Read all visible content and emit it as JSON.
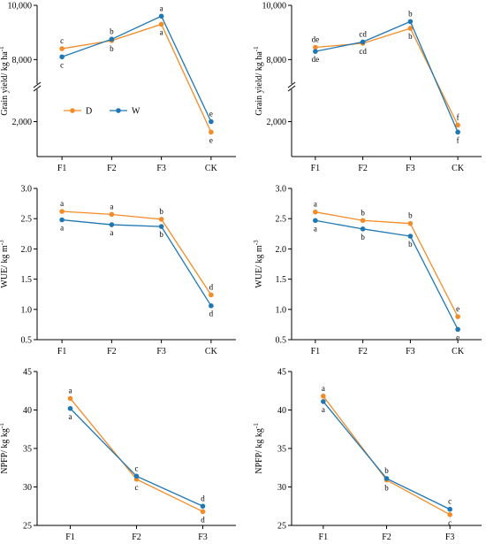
{
  "colors": {
    "D": "#F28C28",
    "W": "#1F77B4",
    "axis": "#000000"
  },
  "chart_data": [
    {
      "type": "line",
      "categories": [
        "F1",
        "F2",
        "F3",
        "CK"
      ],
      "ylabel": "Grain yield/ kg ha",
      "ylabel_sup": "-1",
      "broken_axis": true,
      "upper_ylim": [
        7000,
        10000
      ],
      "upper_ticks": [
        "8,000",
        "10,000"
      ],
      "upper_tick_values": [
        8000,
        10000
      ],
      "lower_ylim": [
        1000,
        3000
      ],
      "lower_ticks": [
        "2,000"
      ],
      "lower_tick_values": [
        2000
      ],
      "legend": {
        "placement": "lower-left",
        "entries": [
          "D",
          "W"
        ]
      },
      "series": [
        {
          "name": "D",
          "values": [
            8400,
            8700,
            9300,
            1700
          ],
          "letters": [
            "c",
            "b",
            "a",
            "e"
          ]
        },
        {
          "name": "W",
          "values": [
            8100,
            8750,
            9600,
            2000
          ],
          "letters": [
            "c",
            "b",
            "a",
            "e"
          ]
        }
      ]
    },
    {
      "type": "line",
      "categories": [
        "F1",
        "F2",
        "F3",
        "CK"
      ],
      "ylabel": "Grain yield/ kg ha",
      "ylabel_sup": "-1",
      "broken_axis": true,
      "upper_ylim": [
        7000,
        10000
      ],
      "upper_ticks": [
        "8,000",
        "10,000"
      ],
      "upper_tick_values": [
        8000,
        10000
      ],
      "lower_ylim": [
        1000,
        3000
      ],
      "lower_ticks": [
        "2,000"
      ],
      "lower_tick_values": [
        2000
      ],
      "series": [
        {
          "name": "D",
          "values": [
            8450,
            8600,
            9150,
            1900
          ],
          "letters": [
            "de",
            "cd",
            "b",
            "f"
          ]
        },
        {
          "name": "W",
          "values": [
            8300,
            8650,
            9400,
            1700
          ],
          "letters": [
            "de",
            "cd",
            "b",
            "f"
          ]
        }
      ]
    },
    {
      "type": "line",
      "categories": [
        "F1",
        "F2",
        "F3",
        "CK"
      ],
      "ylabel": "WUE/ kg m",
      "ylabel_sup": "-3",
      "ylim": [
        0.5,
        3.0
      ],
      "yticks": [
        "0.5",
        "1.0",
        "1.5",
        "2.0",
        "2.5",
        "3.0"
      ],
      "ytick_values": [
        0.5,
        1.0,
        1.5,
        2.0,
        2.5,
        3.0
      ],
      "series": [
        {
          "name": "D",
          "values": [
            2.62,
            2.57,
            2.49,
            1.24
          ],
          "letters": [
            "a",
            "a",
            "b",
            "d"
          ]
        },
        {
          "name": "W",
          "values": [
            2.48,
            2.4,
            2.37,
            1.06
          ],
          "letters": [
            "a",
            "a",
            "b",
            "d"
          ]
        }
      ]
    },
    {
      "type": "line",
      "categories": [
        "F1",
        "F2",
        "F3",
        "CK"
      ],
      "ylabel": "WUE/ kg m",
      "ylabel_sup": "-3",
      "ylim": [
        0.5,
        3.0
      ],
      "yticks": [
        "0.5",
        "1.0",
        "1.5",
        "2.0",
        "2.5",
        "3.0"
      ],
      "ytick_values": [
        0.5,
        1.0,
        1.5,
        2.0,
        2.5,
        3.0
      ],
      "series": [
        {
          "name": "D",
          "values": [
            2.61,
            2.47,
            2.42,
            0.88
          ],
          "letters": [
            "a",
            "b",
            "b",
            "e"
          ]
        },
        {
          "name": "W",
          "values": [
            2.47,
            2.33,
            2.21,
            0.67
          ],
          "letters": [
            "a",
            "b",
            "b",
            "e"
          ]
        }
      ]
    },
    {
      "type": "line",
      "categories": [
        "F1",
        "F2",
        "F3"
      ],
      "ylabel": "NPFP/ kg kg",
      "ylabel_sup": "-1",
      "ylim": [
        25,
        45
      ],
      "yticks": [
        "25",
        "30",
        "35",
        "40",
        "45"
      ],
      "ytick_values": [
        25,
        30,
        35,
        40,
        45
      ],
      "series": [
        {
          "name": "D",
          "values": [
            41.5,
            31.0,
            26.8
          ],
          "letters": [
            "a",
            "c",
            "d"
          ]
        },
        {
          "name": "W",
          "values": [
            40.2,
            31.4,
            27.5
          ],
          "letters": [
            "a",
            "c",
            "d"
          ]
        }
      ]
    },
    {
      "type": "line",
      "categories": [
        "F1",
        "F2",
        "F3"
      ],
      "ylabel": "NPFP/ kg kg",
      "ylabel_sup": "-1",
      "ylim": [
        25,
        45
      ],
      "yticks": [
        "25",
        "30",
        "35",
        "40",
        "45"
      ],
      "ytick_values": [
        25,
        30,
        35,
        40,
        45
      ],
      "series": [
        {
          "name": "D",
          "values": [
            41.8,
            30.9,
            26.4
          ],
          "letters": [
            "a",
            "b",
            "c"
          ]
        },
        {
          "name": "W",
          "values": [
            41.1,
            31.1,
            27.1
          ],
          "letters": [
            "a",
            "b",
            "c"
          ]
        }
      ]
    }
  ]
}
